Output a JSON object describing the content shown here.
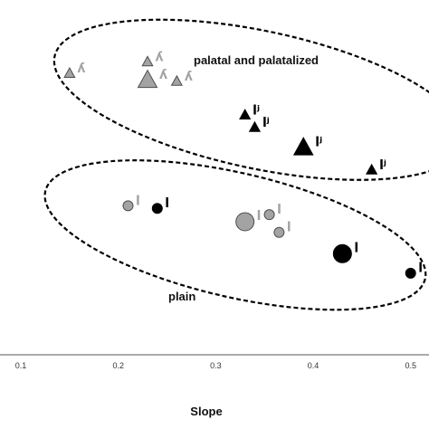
{
  "chart_data": {
    "type": "scatter",
    "xlabel": "Slope",
    "ylabel": "",
    "xlim": [
      0.06,
      0.53
    ],
    "ylim": [
      -0.1,
      3.9
    ],
    "x_ticks": [
      "0.1",
      "0.2",
      "0.3",
      "0.4",
      "0.5"
    ],
    "grid": false,
    "groups": [
      {
        "label": "palatal and palatalized",
        "x_range": [
          0.13,
          0.56
        ],
        "y_range": [
          2.0,
          3.55
        ]
      },
      {
        "label": "plain",
        "x_range": [
          0.12,
          0.52
        ],
        "y_range": [
          0.55,
          1.95
        ]
      }
    ],
    "points": [
      {
        "x": 0.15,
        "y": 3.07,
        "shape": "triangle",
        "fill": "gray",
        "size": "small",
        "label": "ʎ"
      },
      {
        "x": 0.23,
        "y": 3.2,
        "shape": "triangle",
        "fill": "gray",
        "size": "small",
        "label": "ʎ"
      },
      {
        "x": 0.23,
        "y": 2.99,
        "shape": "triangle",
        "fill": "gray",
        "size": "large",
        "label": "ʎ"
      },
      {
        "x": 0.26,
        "y": 2.98,
        "shape": "triangle",
        "fill": "gray",
        "size": "small",
        "label": "ʎ"
      },
      {
        "x": 0.33,
        "y": 2.6,
        "shape": "triangle",
        "fill": "black",
        "size": "small",
        "label": "lʲ"
      },
      {
        "x": 0.34,
        "y": 2.46,
        "shape": "triangle",
        "fill": "black",
        "size": "small",
        "label": "lʲ"
      },
      {
        "x": 0.39,
        "y": 2.23,
        "shape": "triangle",
        "fill": "black",
        "size": "large",
        "label": "lʲ"
      },
      {
        "x": 0.46,
        "y": 1.98,
        "shape": "triangle",
        "fill": "black",
        "size": "small",
        "label": "lʲ"
      },
      {
        "x": 0.21,
        "y": 1.58,
        "shape": "circle",
        "fill": "gray",
        "size": "small",
        "label": "l"
      },
      {
        "x": 0.24,
        "y": 1.55,
        "shape": "circle",
        "fill": "black",
        "size": "small",
        "label": "l"
      },
      {
        "x": 0.33,
        "y": 1.4,
        "shape": "circle",
        "fill": "gray",
        "size": "large",
        "label": "l"
      },
      {
        "x": 0.355,
        "y": 1.48,
        "shape": "circle",
        "fill": "gray",
        "size": "small",
        "label": "l"
      },
      {
        "x": 0.365,
        "y": 1.28,
        "shape": "circle",
        "fill": "gray",
        "size": "small",
        "label": "l"
      },
      {
        "x": 0.43,
        "y": 1.04,
        "shape": "circle",
        "fill": "black",
        "size": "large",
        "label": "l"
      },
      {
        "x": 0.5,
        "y": 0.82,
        "shape": "circle",
        "fill": "black",
        "size": "small",
        "label": "l"
      }
    ]
  },
  "colors": {
    "gray_fill": "#a3a3a3",
    "gray_stroke": "#4d4d4d",
    "gray_label": "#a3a3a3",
    "black": "#000000",
    "axis": "#555555"
  }
}
